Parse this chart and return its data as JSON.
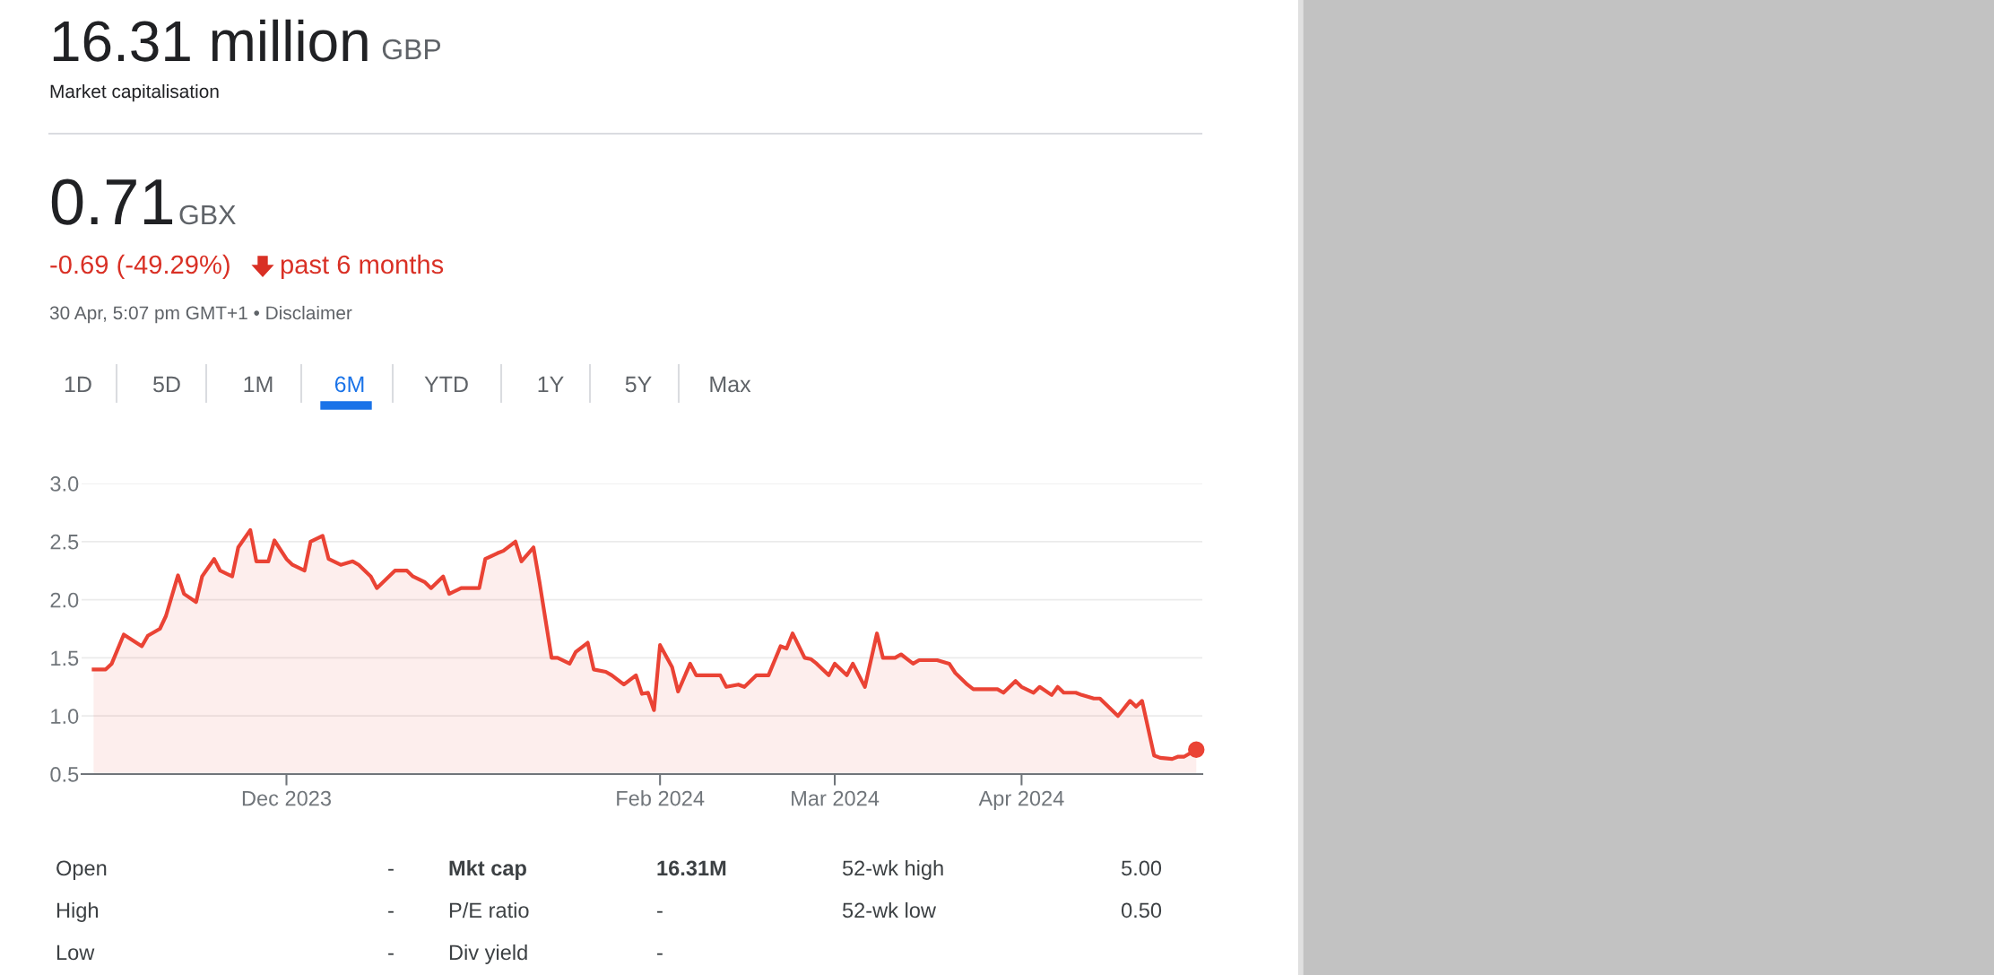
{
  "chart_data": {
    "type": "area",
    "title": "16.31 million",
    "annotations": [
      "GBP",
      "Market capitalisation",
      "0.71",
      "GBX",
      "-0.69 (-49.29%)",
      "past 6 months",
      "30 Apr, 5:07 pm GMT+1 • Disclaimer",
      "1D",
      "5D",
      "1M",
      "6M",
      "YTD",
      "1Y",
      "5Y",
      "Max",
      "Open",
      "-",
      "Mkt cap",
      "16.31M",
      "52-wk high",
      "5.00",
      "High",
      "-",
      "P/E ratio",
      "-",
      "52-wk low",
      "0.50",
      "Low",
      "-",
      "Div yield",
      "-"
    ],
    "series": [
      {
        "color": "#ea4335",
        "x": [
          "2023-10-30",
          "2023-11-01",
          "2023-11-02",
          "2023-11-04",
          "2023-11-07",
          "2023-11-08",
          "2023-11-10",
          "2023-11-11",
          "2023-11-13",
          "2023-11-14",
          "2023-11-16",
          "2023-11-17",
          "2023-11-19",
          "2023-11-20",
          "2023-11-22",
          "2023-11-23",
          "2023-11-25",
          "2023-11-26",
          "2023-11-28",
          "2023-11-29",
          "2023-12-01",
          "2023-12-02",
          "2023-12-04",
          "2023-12-05",
          "2023-12-07",
          "2023-12-08",
          "2023-12-10",
          "2023-12-12",
          "2023-12-13",
          "2023-12-15",
          "2023-12-16",
          "2023-12-18",
          "2023-12-19",
          "2023-12-21",
          "2023-12-22",
          "2023-12-24",
          "2023-12-25",
          "2023-12-27",
          "2023-12-28",
          "2023-12-30",
          "2023-12-31",
          "2024-01-02",
          "2024-01-03",
          "2024-01-05",
          "2024-01-06",
          "2024-01-08",
          "2024-01-09",
          "2024-01-11",
          "2024-01-12",
          "2024-01-14",
          "2024-01-15",
          "2024-01-17",
          "2024-01-18",
          "2024-01-20",
          "2024-01-21",
          "2024-01-23",
          "2024-01-24",
          "2024-01-26",
          "2024-01-28",
          "2024-01-29",
          "2024-01-30",
          "2024-01-31",
          "2024-02-01",
          "2024-02-03",
          "2024-02-04",
          "2024-02-06",
          "2024-02-07",
          "2024-02-08",
          "2024-02-10",
          "2024-02-11",
          "2024-02-12",
          "2024-02-14",
          "2024-02-15",
          "2024-02-17",
          "2024-02-18",
          "2024-02-19",
          "2024-02-21",
          "2024-02-22",
          "2024-02-23",
          "2024-02-25",
          "2024-02-26",
          "2024-02-27",
          "2024-02-29",
          "2024-03-01",
          "2024-03-03",
          "2024-03-04",
          "2024-03-06",
          "2024-03-08",
          "2024-03-09",
          "2024-03-11",
          "2024-03-12",
          "2024-03-14",
          "2024-03-15",
          "2024-03-17",
          "2024-03-18",
          "2024-03-20",
          "2024-03-21",
          "2024-03-23",
          "2024-03-24",
          "2024-03-26",
          "2024-03-28",
          "2024-03-29",
          "2024-03-31",
          "2024-04-01",
          "2024-04-03",
          "2024-04-04",
          "2024-04-06",
          "2024-04-07",
          "2024-04-08",
          "2024-04-10",
          "2024-04-11",
          "2024-04-13",
          "2024-04-14",
          "2024-04-16",
          "2024-04-17",
          "2024-04-19",
          "2024-04-20",
          "2024-04-21",
          "2024-04-23",
          "2024-04-24",
          "2024-04-26",
          "2024-04-27",
          "2024-04-28",
          "2024-04-30"
        ],
        "values": [
          1.4,
          1.4,
          1.45,
          1.7,
          1.6,
          1.69,
          1.75,
          1.86,
          2.21,
          2.05,
          1.98,
          2.2,
          2.35,
          2.25,
          2.2,
          2.45,
          2.6,
          2.33,
          2.33,
          2.51,
          2.35,
          2.3,
          2.25,
          2.5,
          2.55,
          2.35,
          2.3,
          2.33,
          2.3,
          2.2,
          2.1,
          2.2,
          2.25,
          2.25,
          2.2,
          2.15,
          2.1,
          2.2,
          2.05,
          2.1,
          2.1,
          2.1,
          2.35,
          2.4,
          2.42,
          2.5,
          2.33,
          2.45,
          2.15,
          1.5,
          1.5,
          1.45,
          1.55,
          1.63,
          1.4,
          1.38,
          1.35,
          1.27,
          1.35,
          1.19,
          1.2,
          1.05,
          1.61,
          1.42,
          1.21,
          1.45,
          1.35,
          1.35,
          1.35,
          1.35,
          1.25,
          1.27,
          1.25,
          1.35,
          1.35,
          1.35,
          1.6,
          1.58,
          1.71,
          1.5,
          1.49,
          1.45,
          1.35,
          1.45,
          1.35,
          1.45,
          1.25,
          1.71,
          1.5,
          1.5,
          1.53,
          1.45,
          1.48,
          1.48,
          1.48,
          1.45,
          1.37,
          1.27,
          1.23,
          1.23,
          1.23,
          1.2,
          1.3,
          1.25,
          1.2,
          1.25,
          1.18,
          1.25,
          1.2,
          1.2,
          1.18,
          1.15,
          1.15,
          1.05,
          1.0,
          1.13,
          1.08,
          1.13,
          0.66,
          0.64,
          0.63,
          0.65,
          0.65,
          0.71
        ]
      },
      {
        "type": "scatter",
        "marker": "circle",
        "color": "#ea4335",
        "x": [
          "2024-04-30"
        ],
        "values": [
          0.71
        ]
      }
    ],
    "xlim": [
      "2023-10-28",
      "2024-05-01"
    ],
    "xticks": [
      {
        "value": "2023-12-01",
        "label": "Dec 2023"
      },
      {
        "value": "2024-02-01",
        "label": "Feb 2024"
      },
      {
        "value": "2024-03-01",
        "label": "Mar 2024"
      },
      {
        "value": "2024-04-01",
        "label": "Apr 2024"
      }
    ],
    "ylim": [
      0.5,
      3.0
    ],
    "yticks": [
      0.5,
      {
        "value": 1,
        "label": "1.0"
      },
      1.5,
      {
        "value": 2,
        "label": "2.0"
      },
      2.5,
      {
        "value": 3,
        "label": "3.0"
      }
    ],
    "grid": "y"
  }
}
